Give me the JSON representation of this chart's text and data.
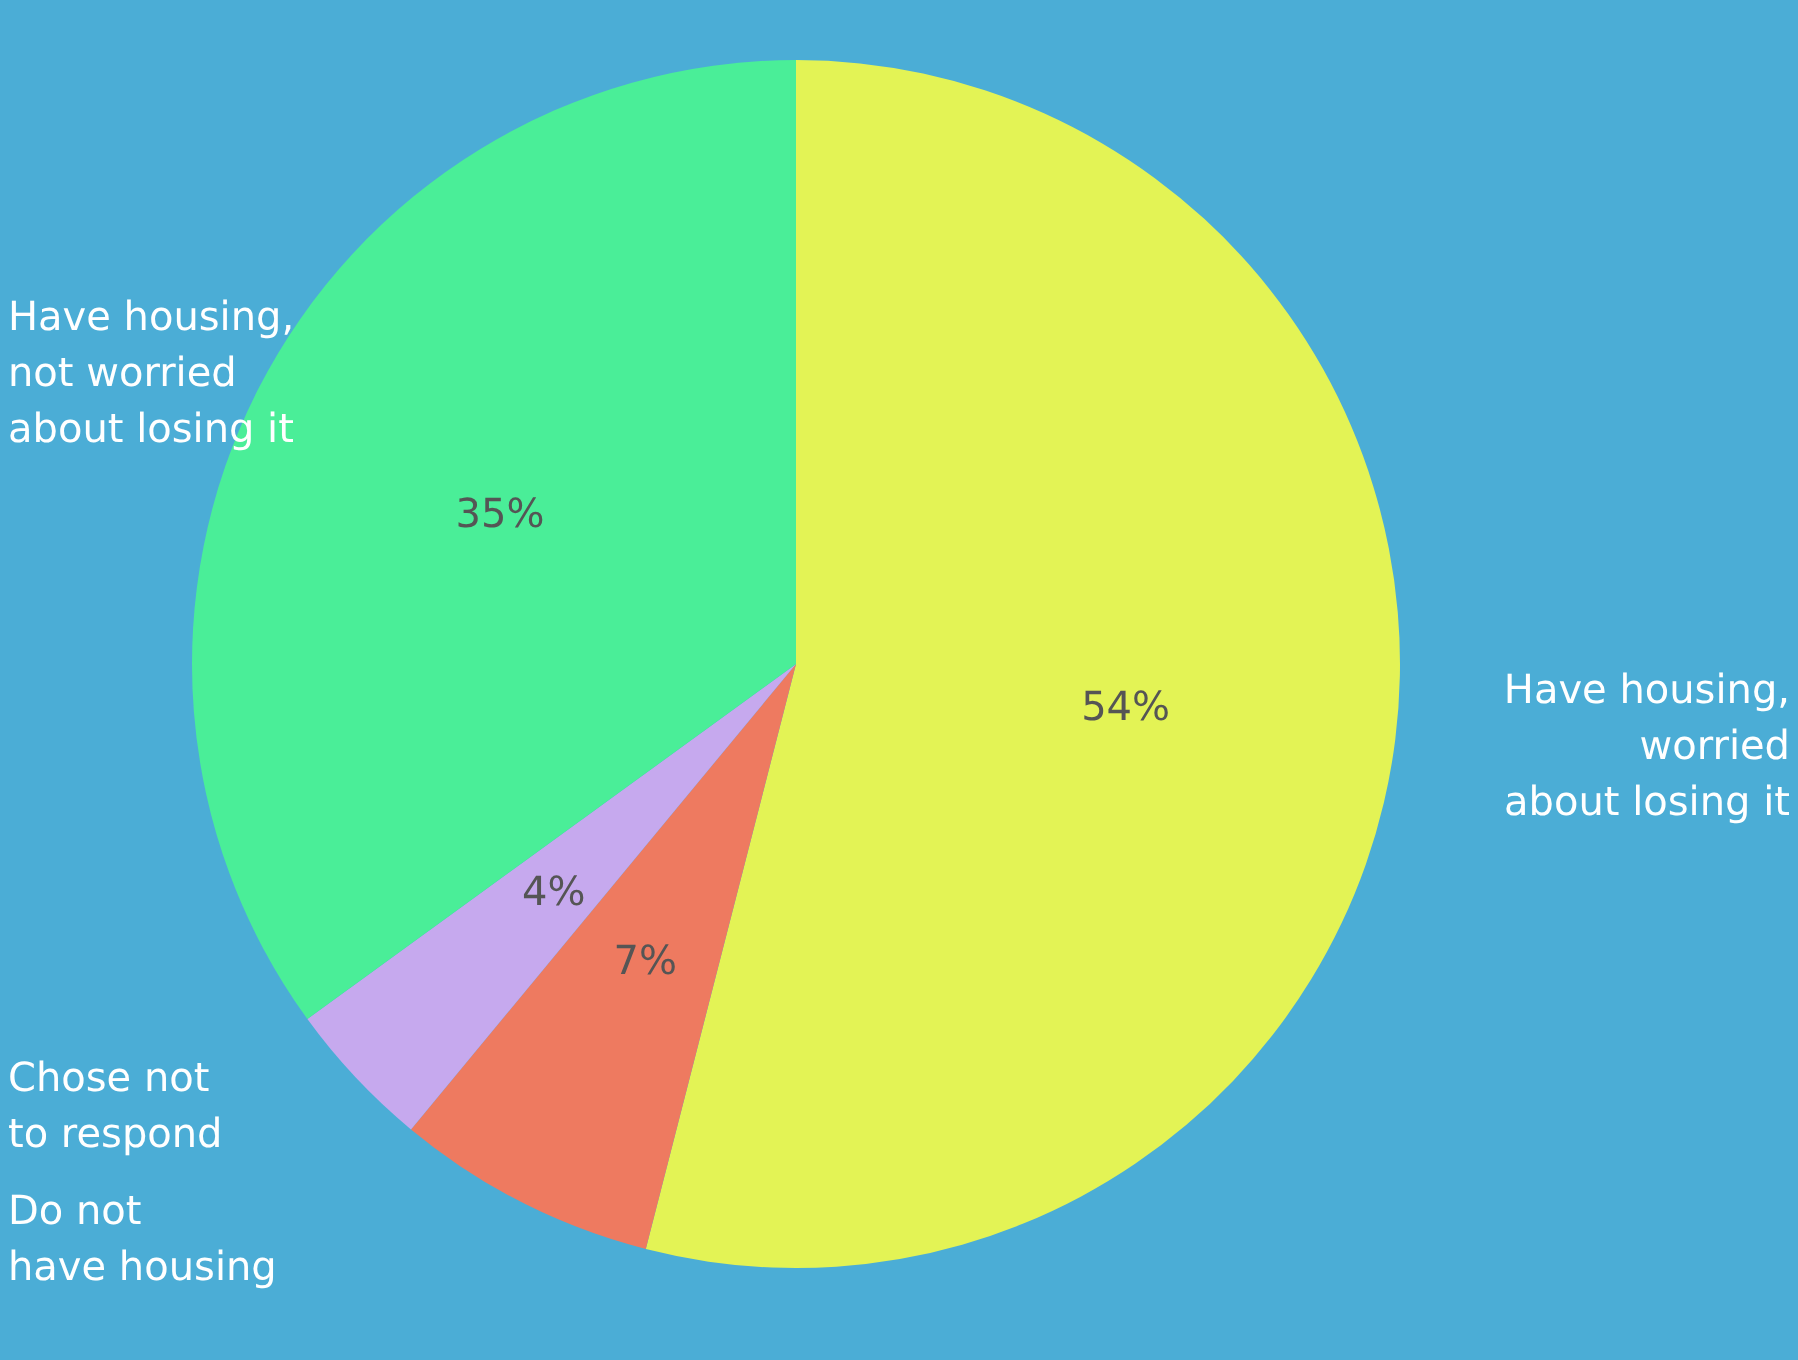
{
  "chart_data": {
    "type": "pie",
    "categories": [
      "Have housing,\nworried\nabout losing it",
      "Do not\nhave housing",
      "Chose not\nto respond",
      "Have housing,\nnot worried\nabout losing it"
    ],
    "values": [
      54,
      7,
      4,
      35
    ],
    "colors": [
      "#e3f355",
      "#ee7a60",
      "#c6a9ee",
      "#4aee98"
    ],
    "value_labels": [
      "54%",
      "7%",
      "4%",
      "35%"
    ]
  }
}
